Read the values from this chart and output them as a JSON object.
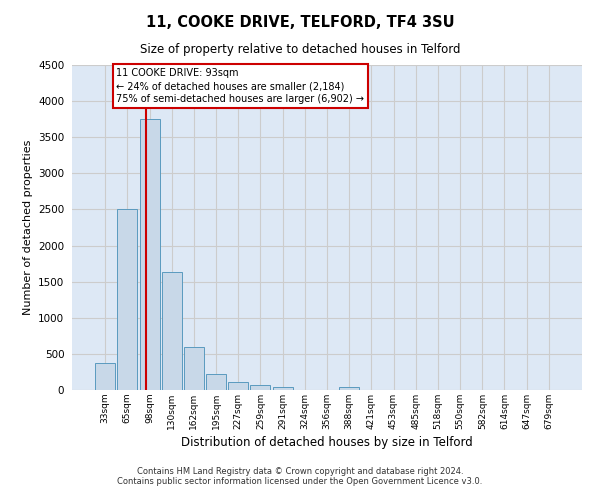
{
  "title_line1": "11, COOKE DRIVE, TELFORD, TF4 3SU",
  "title_line2": "Size of property relative to detached houses in Telford",
  "xlabel": "Distribution of detached houses by size in Telford",
  "ylabel": "Number of detached properties",
  "categories": [
    "33sqm",
    "65sqm",
    "98sqm",
    "130sqm",
    "162sqm",
    "195sqm",
    "227sqm",
    "259sqm",
    "291sqm",
    "324sqm",
    "356sqm",
    "388sqm",
    "421sqm",
    "453sqm",
    "485sqm",
    "518sqm",
    "550sqm",
    "582sqm",
    "614sqm",
    "647sqm",
    "679sqm"
  ],
  "values": [
    370,
    2500,
    3750,
    1640,
    590,
    225,
    105,
    65,
    40,
    0,
    0,
    45,
    0,
    0,
    0,
    0,
    0,
    0,
    0,
    0,
    0
  ],
  "bar_color": "#c8d8e8",
  "bar_edge_color": "#5a9abf",
  "annotation_text_line1": "11 COOKE DRIVE: 93sqm",
  "annotation_text_line2": "← 24% of detached houses are smaller (2,184)",
  "annotation_text_line3": "75% of semi-detached houses are larger (6,902) →",
  "annotation_box_color": "#ffffff",
  "annotation_box_edge": "#cc0000",
  "vline_color": "#cc0000",
  "vline_x_index": 1.84,
  "ylim": [
    0,
    4500
  ],
  "yticks": [
    0,
    500,
    1000,
    1500,
    2000,
    2500,
    3000,
    3500,
    4000,
    4500
  ],
  "grid_color": "#cccccc",
  "background_color": "#dde8f5",
  "footer_line1": "Contains HM Land Registry data © Crown copyright and database right 2024.",
  "footer_line2": "Contains public sector information licensed under the Open Government Licence v3.0."
}
